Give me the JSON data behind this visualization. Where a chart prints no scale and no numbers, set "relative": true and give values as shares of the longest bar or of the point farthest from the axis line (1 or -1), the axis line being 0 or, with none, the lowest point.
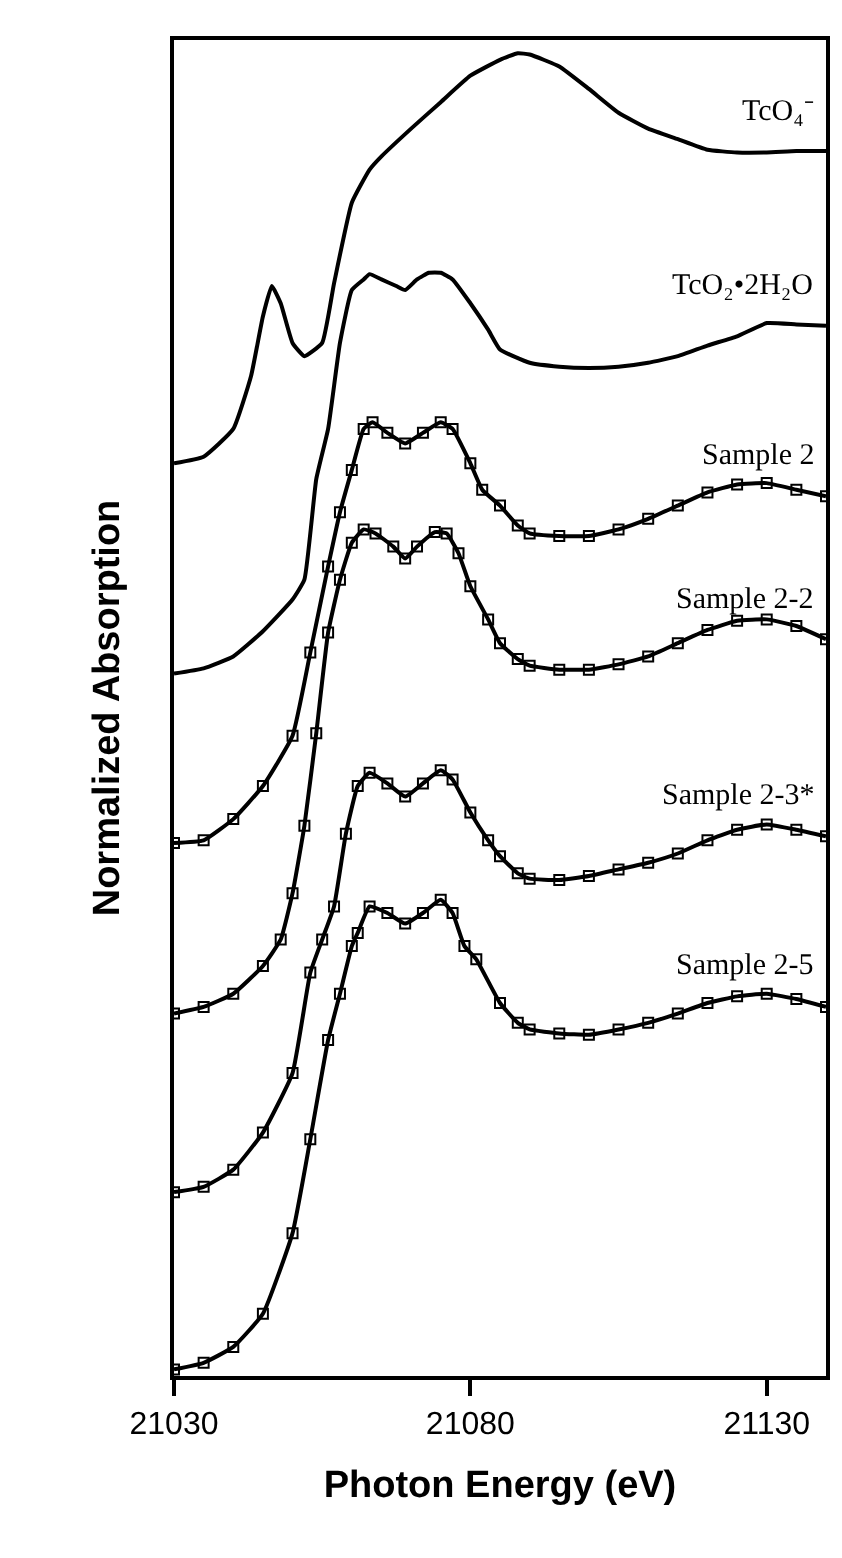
{
  "chart_data": {
    "type": "line",
    "relative": true,
    "xlabel": "Photon Energy (eV)",
    "ylabel": "Normalized Absorption",
    "xlim": [
      21030,
      21140
    ],
    "xticks": [
      21030,
      21080,
      21130
    ],
    "legend": false,
    "tick_labels": "x",
    "line_style": "solid",
    "series": [
      {
        "name": "TcO₄⁻",
        "color": "#000000",
        "marker": "none",
        "x": [
          21030,
          21035,
          21040,
          21043,
          21045,
          21046.5,
          21048,
          21050,
          21052,
          21055,
          21057,
          21060,
          21063,
          21065,
          21070,
          21075,
          21080,
          21085,
          21088,
          21090,
          21095,
          21100,
          21105,
          21110,
          21115,
          21120,
          21125,
          21130,
          21135,
          21140
        ],
        "values": [
          0.69,
          0.695,
          0.716,
          0.756,
          0.801,
          0.824,
          0.811,
          0.781,
          0.771,
          0.781,
          0.826,
          0.887,
          0.912,
          0.922,
          0.943,
          0.963,
          0.983,
          0.995,
          1.0,
          0.999,
          0.99,
          0.973,
          0.955,
          0.943,
          0.935,
          0.927,
          0.925,
          0.925,
          0.926,
          0.926
        ]
      },
      {
        "name": "TcO₂•2H₂O",
        "color": "#000000",
        "marker": "none",
        "x": [
          21030,
          21035,
          21040,
          21045,
          21050,
          21052,
          21054,
          21056,
          21058,
          21060,
          21062,
          21063,
          21065,
          21067.5,
          21069,
          21071,
          21073,
          21075,
          21077,
          21080,
          21083,
          21085,
          21090,
          21095,
          21100,
          21105,
          21110,
          21115,
          21120,
          21125,
          21130,
          21135,
          21140
        ],
        "values": [
          0.531,
          0.535,
          0.544,
          0.563,
          0.587,
          0.602,
          0.678,
          0.716,
          0.781,
          0.821,
          0.829,
          0.833,
          0.829,
          0.824,
          0.821,
          0.829,
          0.834,
          0.834,
          0.829,
          0.811,
          0.791,
          0.776,
          0.766,
          0.763,
          0.762,
          0.763,
          0.766,
          0.771,
          0.779,
          0.786,
          0.796,
          0.795,
          0.794
        ]
      },
      {
        "name": "Sample 2",
        "color": "#000000",
        "marker": "square",
        "x": [
          21030,
          21035,
          21040,
          21045,
          21050,
          21053,
          21056,
          21058,
          21060,
          21062,
          21063.5,
          21066,
          21069,
          21072,
          21075,
          21077,
          21080,
          21082,
          21085,
          21088,
          21090,
          21095,
          21100,
          21105,
          21110,
          21115,
          21120,
          21125,
          21130,
          21135,
          21140
        ],
        "values": [
          0.403,
          0.405,
          0.421,
          0.446,
          0.484,
          0.547,
          0.612,
          0.653,
          0.685,
          0.716,
          0.721,
          0.713,
          0.705,
          0.713,
          0.721,
          0.716,
          0.69,
          0.67,
          0.658,
          0.643,
          0.637,
          0.635,
          0.635,
          0.64,
          0.648,
          0.658,
          0.668,
          0.674,
          0.675,
          0.67,
          0.665
        ]
      },
      {
        "name": "Sample 2-2",
        "color": "#000000",
        "marker": "square",
        "x": [
          21030,
          21035,
          21040,
          21045,
          21048,
          21050,
          21052,
          21054,
          21056,
          21058,
          21060,
          21062,
          21064,
          21067,
          21069,
          21071,
          21074,
          21076,
          21078,
          21080,
          21083,
          21085,
          21088,
          21090,
          21095,
          21100,
          21105,
          21110,
          21115,
          21120,
          21125,
          21130,
          21135,
          21140
        ],
        "values": [
          0.274,
          0.279,
          0.289,
          0.31,
          0.33,
          0.365,
          0.416,
          0.486,
          0.562,
          0.602,
          0.63,
          0.64,
          0.637,
          0.627,
          0.618,
          0.627,
          0.638,
          0.637,
          0.622,
          0.597,
          0.572,
          0.554,
          0.542,
          0.537,
          0.534,
          0.534,
          0.538,
          0.544,
          0.554,
          0.564,
          0.571,
          0.572,
          0.567,
          0.557
        ]
      },
      {
        "name": "Sample 2-3*",
        "color": "#000000",
        "marker": "square",
        "x": [
          21030,
          21035,
          21040,
          21045,
          21050,
          21053,
          21055,
          21057,
          21059,
          21061,
          21063,
          21066,
          21069,
          21072,
          21075,
          21077,
          21080,
          21083,
          21085,
          21088,
          21090,
          21095,
          21100,
          21105,
          21110,
          21115,
          21120,
          21125,
          21130,
          21135,
          21140
        ],
        "values": [
          0.139,
          0.143,
          0.156,
          0.184,
          0.229,
          0.305,
          0.33,
          0.355,
          0.41,
          0.446,
          0.456,
          0.448,
          0.438,
          0.448,
          0.458,
          0.451,
          0.426,
          0.405,
          0.393,
          0.38,
          0.376,
          0.375,
          0.378,
          0.383,
          0.388,
          0.395,
          0.405,
          0.413,
          0.417,
          0.413,
          0.408
        ]
      },
      {
        "name": "Sample 2-5",
        "color": "#000000",
        "marker": "square",
        "x": [
          21030,
          21035,
          21040,
          21045,
          21050,
          21053,
          21056,
          21058,
          21060,
          21061,
          21063,
          21066,
          21069,
          21072,
          21075,
          21077,
          21079,
          21081,
          21085,
          21088,
          21090,
          21095,
          21100,
          21105,
          21110,
          21115,
          21120,
          21125,
          21130,
          21135,
          21140
        ],
        "values": [
          0.005,
          0.01,
          0.022,
          0.047,
          0.108,
          0.179,
          0.254,
          0.289,
          0.325,
          0.335,
          0.355,
          0.35,
          0.342,
          0.35,
          0.36,
          0.35,
          0.325,
          0.315,
          0.282,
          0.267,
          0.262,
          0.259,
          0.258,
          0.262,
          0.267,
          0.274,
          0.282,
          0.287,
          0.289,
          0.285,
          0.279
        ]
      }
    ]
  }
}
